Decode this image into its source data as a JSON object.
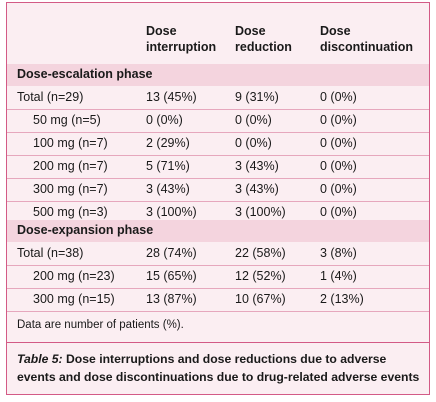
{
  "columns": {
    "c1": [
      "Dose",
      "interruption"
    ],
    "c2": [
      "Dose",
      "reduction"
    ],
    "c3": [
      "Dose",
      "discontinuation"
    ]
  },
  "sections": [
    {
      "label": "Dose-escalation phase",
      "rows": [
        {
          "label": "Total (n=29)",
          "indent": false,
          "interruption": "13 (45%)",
          "reduction": "9 (31%)",
          "discontinuation": "0 (0%)"
        },
        {
          "label": "50 mg (n=5)",
          "indent": true,
          "interruption": "0 (0%)",
          "reduction": "0 (0%)",
          "discontinuation": "0 (0%)"
        },
        {
          "label": "100 mg (n=7)",
          "indent": true,
          "interruption": "2 (29%)",
          "reduction": "0 (0%)",
          "discontinuation": "0 (0%)"
        },
        {
          "label": "200 mg (n=7)",
          "indent": true,
          "interruption": "5 (71%)",
          "reduction": "3 (43%)",
          "discontinuation": "0 (0%)"
        },
        {
          "label": "300 mg (n=7)",
          "indent": true,
          "interruption": "3 (43%)",
          "reduction": "3 (43%)",
          "discontinuation": "0 (0%)"
        },
        {
          "label": "500 mg (n=3)",
          "indent": true,
          "interruption": "3 (100%)",
          "reduction": "3 (100%)",
          "discontinuation": "0 (0%)"
        }
      ]
    },
    {
      "label": "Dose-expansion phase",
      "rows": [
        {
          "label": "Total (n=38)",
          "indent": false,
          "interruption": "28 (74%)",
          "reduction": "22 (58%)",
          "discontinuation": "3 (8%)"
        },
        {
          "label": "200 mg (n=23)",
          "indent": true,
          "interruption": "15 (65%)",
          "reduction": "12 (52%)",
          "discontinuation": "1 (4%)"
        },
        {
          "label": "300 mg (n=15)",
          "indent": true,
          "interruption": "13 (87%)",
          "reduction": "10 (67%)",
          "discontinuation": "2 (13%)"
        }
      ]
    }
  ],
  "footnote": "Data are number of patients (%).",
  "caption": {
    "table_number": "Table 5:",
    "text": "Dose interruptions and dose reductions due to adverse events and dose discontinuations due to drug-related adverse events"
  },
  "colors": {
    "background": "#fbeef2",
    "section_band": "#f4d4de",
    "border": "#d35a86",
    "row_rule": "#e6a7bd"
  }
}
